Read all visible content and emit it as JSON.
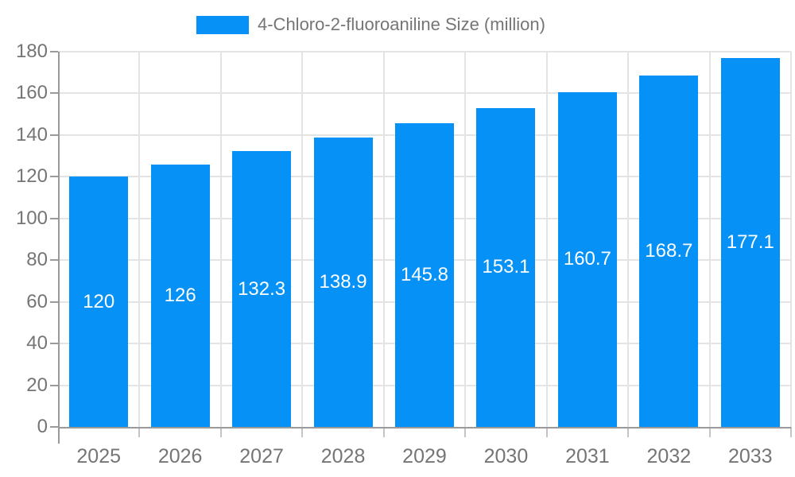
{
  "legend": {
    "label": "4-Chloro-2-fluoroaniline Size (million)"
  },
  "chart_data": {
    "type": "bar",
    "title": "",
    "legend": "4-Chloro-2-fluoroaniline Size (million)",
    "legend_position": "top",
    "categories": [
      "2025",
      "2026",
      "2027",
      "2028",
      "2029",
      "2030",
      "2031",
      "2032",
      "2033"
    ],
    "values": [
      120,
      126,
      132.3,
      138.9,
      145.8,
      153.1,
      160.7,
      168.7,
      177.1
    ],
    "value_labels": [
      "120",
      "126",
      "132.3",
      "138.9",
      "145.8",
      "153.1",
      "160.7",
      "168.7",
      "177.1"
    ],
    "xlabel": "",
    "ylabel": "",
    "ylim": [
      0,
      180
    ],
    "yticks": [
      0,
      20,
      40,
      60,
      80,
      100,
      120,
      140,
      160,
      180
    ],
    "grid": true
  },
  "colors": {
    "bar": "#0591f5",
    "axis_line": "#9a9a9a",
    "gridline": "#e4e4e4",
    "tick": "#c4c4c4",
    "text_muted": "#757575",
    "value_label": "#ffffff",
    "background": "#ffffff"
  }
}
